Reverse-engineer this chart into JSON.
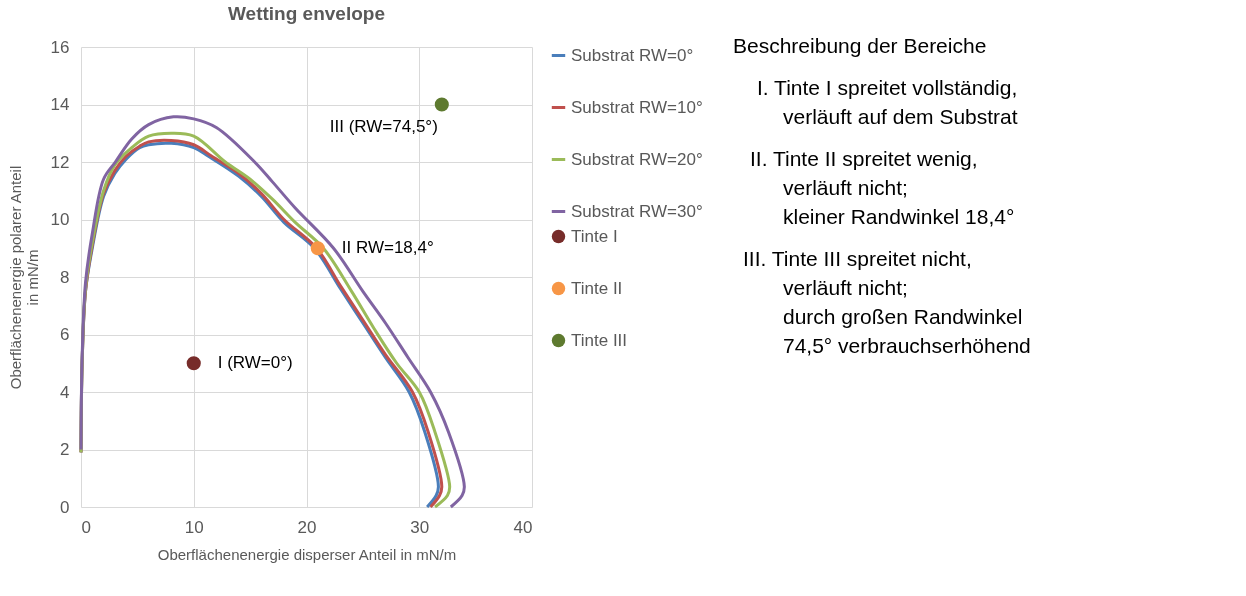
{
  "chart_data": {
    "type": "line",
    "title": "Wetting envelope",
    "xlabel": "Oberflächenenergie disperser Anteil in mN/m",
    "ylabel": "Oberflächenenergie polarer Anteil\nin mN/m",
    "xlim": [
      0,
      40
    ],
    "ylim": [
      0,
      16
    ],
    "xticks": [
      0,
      10,
      20,
      30,
      40
    ],
    "yticks": [
      0,
      2,
      4,
      6,
      8,
      10,
      12,
      14,
      16
    ],
    "grid": true,
    "legend": "right",
    "line_style": "solid",
    "series": [
      {
        "name": "Substrat RW=0°",
        "color": "#4a7ebb",
        "x": [
          0,
          0.1,
          0.4,
          1,
          2,
          3,
          4,
          5.2,
          6,
          8,
          10,
          11.3,
          14,
          16,
          18,
          20.7,
          23,
          25,
          27,
          29.1,
          30.5,
          31.7,
          31.5,
          30.7
        ],
        "values": [
          1.9,
          5,
          7.5,
          9,
          10.8,
          11.6,
          12.1,
          12.5,
          12.6,
          12.65,
          12.5,
          12.2,
          11.5,
          10.8,
          9.9,
          9,
          7.6,
          6.4,
          5.2,
          4,
          2.6,
          0.7,
          0.4,
          0
        ]
      },
      {
        "name": "Substrat RW=10°",
        "color": "#c0504d",
        "x": [
          0,
          0.1,
          0.4,
          1,
          2,
          3,
          4,
          5.2,
          6,
          8,
          10,
          11.6,
          14,
          16,
          18,
          20.9,
          23,
          25,
          27,
          29.4,
          30.8,
          32,
          31.8,
          31
        ],
        "values": [
          1.9,
          5,
          7.5,
          9.1,
          10.9,
          11.7,
          12.2,
          12.55,
          12.7,
          12.75,
          12.6,
          12.2,
          11.6,
          10.9,
          10,
          9,
          7.7,
          6.5,
          5.3,
          4,
          2.6,
          0.7,
          0.4,
          0
        ]
      },
      {
        "name": "Substrat RW=20°",
        "color": "#9bbb59",
        "x": [
          0,
          0.1,
          0.4,
          1,
          2,
          3,
          4.5,
          6,
          8,
          10,
          12.8,
          15,
          17,
          19,
          21.5,
          24,
          26,
          28,
          30,
          31.4,
          32.7,
          32.5,
          31.4
        ],
        "values": [
          1.9,
          5,
          7.6,
          9.2,
          11,
          11.9,
          12.5,
          12.9,
          13,
          12.9,
          12,
          11.4,
          10.7,
          9.9,
          9,
          7.5,
          6.2,
          5,
          4,
          2.6,
          0.7,
          0.4,
          0
        ]
      },
      {
        "name": "Substrat RW=30°",
        "color": "#8064a2",
        "x": [
          0,
          0.1,
          0.4,
          1,
          2,
          3.05,
          4.5,
          6,
          8.2,
          10,
          12,
          15.4,
          17,
          19,
          22.4,
          25,
          27,
          29,
          31,
          32.6,
          34,
          33.8,
          32.8
        ],
        "values": [
          2,
          5.2,
          7.8,
          9.5,
          11.4,
          12,
          12.8,
          13.3,
          13.57,
          13.5,
          13.2,
          12,
          11.3,
          10.4,
          9,
          7.5,
          6.4,
          5.2,
          4,
          2.6,
          0.7,
          0.4,
          0
        ]
      },
      {
        "name": "Tinte I",
        "type": "scatter",
        "color": "#772c2a",
        "x": [
          10
        ],
        "values": [
          5
        ]
      },
      {
        "name": "Tinte II",
        "type": "scatter",
        "color": "#f79646",
        "x": [
          21
        ],
        "values": [
          9
        ]
      },
      {
        "name": "Tinte III",
        "type": "scatter",
        "color": "#5e7a2f",
        "x": [
          32
        ],
        "values": [
          14
        ]
      }
    ],
    "annotations": [
      {
        "text": "I (RW=0°)",
        "x": 10,
        "y": 5
      },
      {
        "text": "II RW=18,4°",
        "x": 21,
        "y": 9
      },
      {
        "text": "III  (RW=74,5°)",
        "x": 32,
        "y": 14
      },
      "Beschreibung der Bereiche",
      "I. Tinte I spreitet vollständig,\nverläuft auf dem Substrat",
      "II. Tinte II spreitet wenig,\nverläuft nicht;\nkleiner Randwinkel 18,4°",
      "III. Tinte III spreitet nicht,\nverläuft nicht;\ndurch großen Randwinkel\n74,5° verbrauchserhöhend"
    ]
  }
}
